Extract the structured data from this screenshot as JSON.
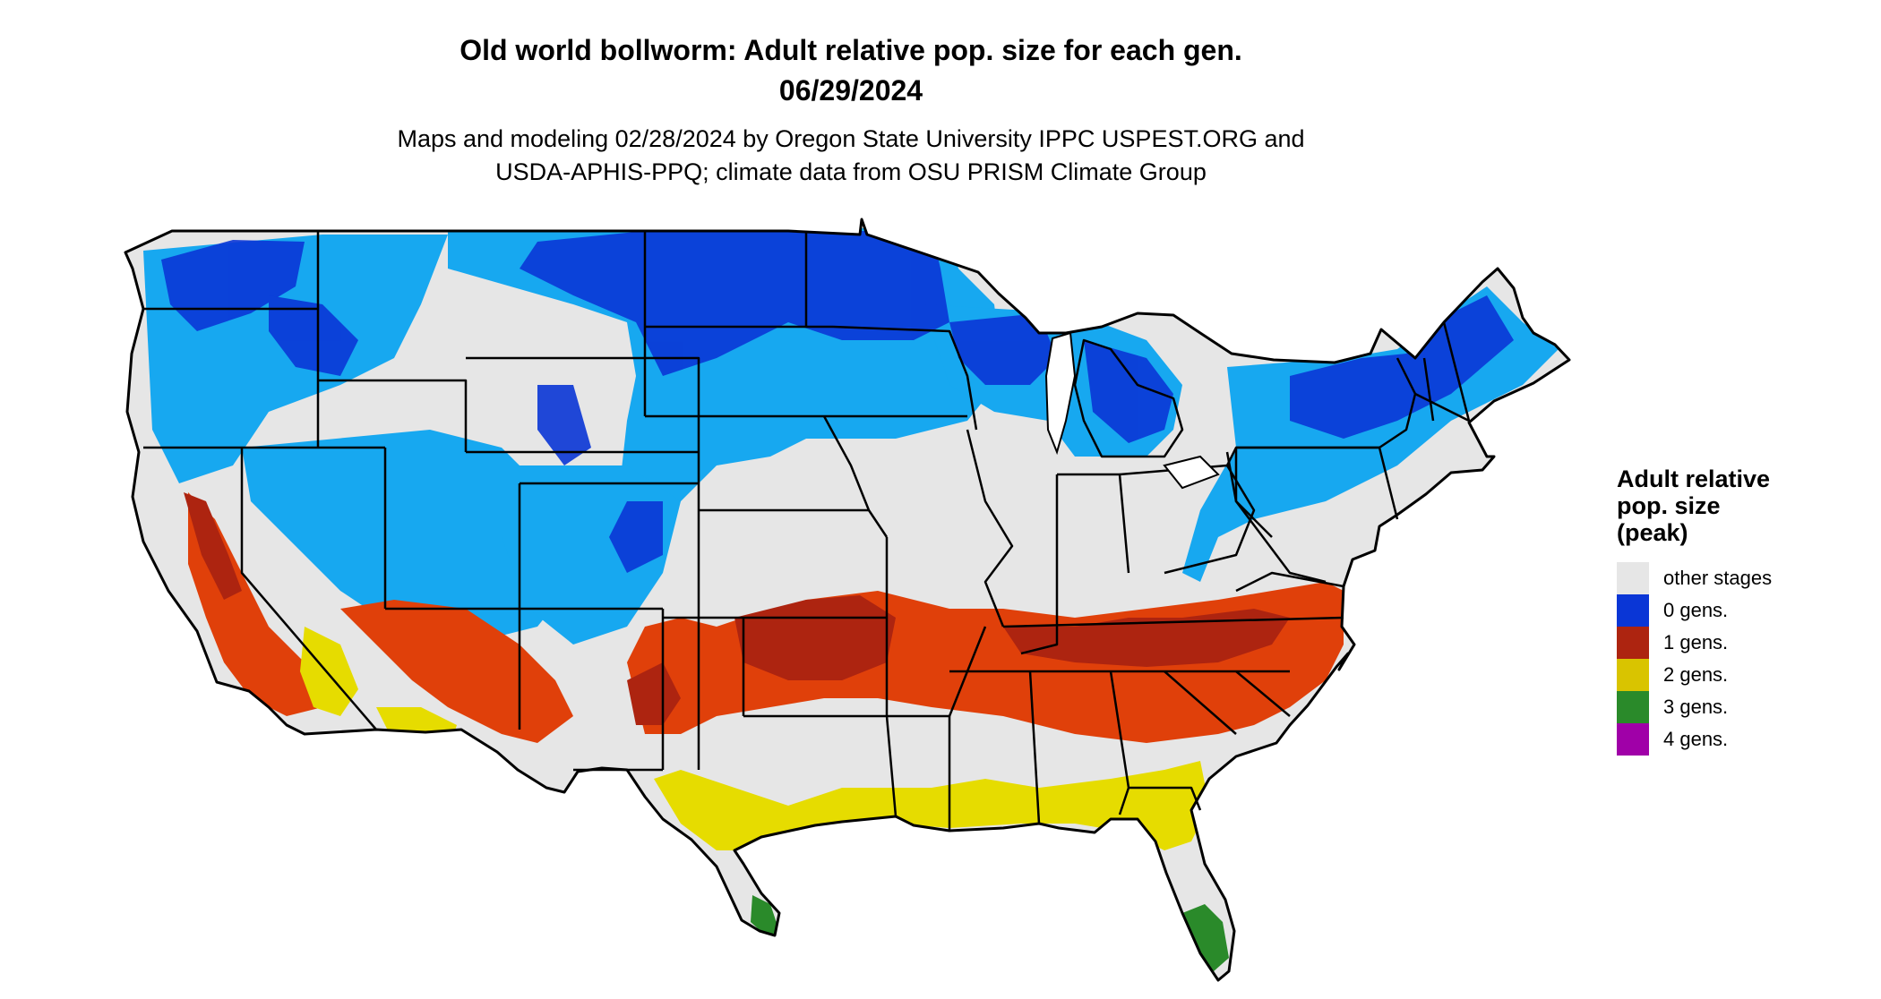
{
  "header": {
    "title_line1": "Old world bollworm: Adult relative pop. size for each gen.",
    "title_line2": "06/29/2024",
    "subtitle_line1": "Maps and modeling 02/28/2024 by Oregon State University IPPC USPEST.ORG and",
    "subtitle_line2": "USDA-APHIS-PPQ; climate data from OSU PRISM Climate Group"
  },
  "legend": {
    "title": "Adult relative\npop. size\n(peak)",
    "items": [
      {
        "label": "other stages",
        "color": "#e6e6e6"
      },
      {
        "label": "0 gens.",
        "color": "#0a36d6"
      },
      {
        "label": "1 gens.",
        "color": "#ad2410"
      },
      {
        "label": "2 gens.",
        "color": "#d9c400"
      },
      {
        "label": "3 gens.",
        "color": "#2a8a2a"
      },
      {
        "label": "4 gens.",
        "color": "#a000a8"
      }
    ]
  },
  "map": {
    "region": "Contiguous United States",
    "zone_colors": {
      "land": "#e6e6e6",
      "cold_blue_dark": "#0a36d6",
      "cold_blue_light": "#17a8f0",
      "red": "#ad2410",
      "orange_red": "#e0400a",
      "yellow": "#e6dc00",
      "green": "#2a8a2a",
      "borders": "#000000"
    }
  }
}
